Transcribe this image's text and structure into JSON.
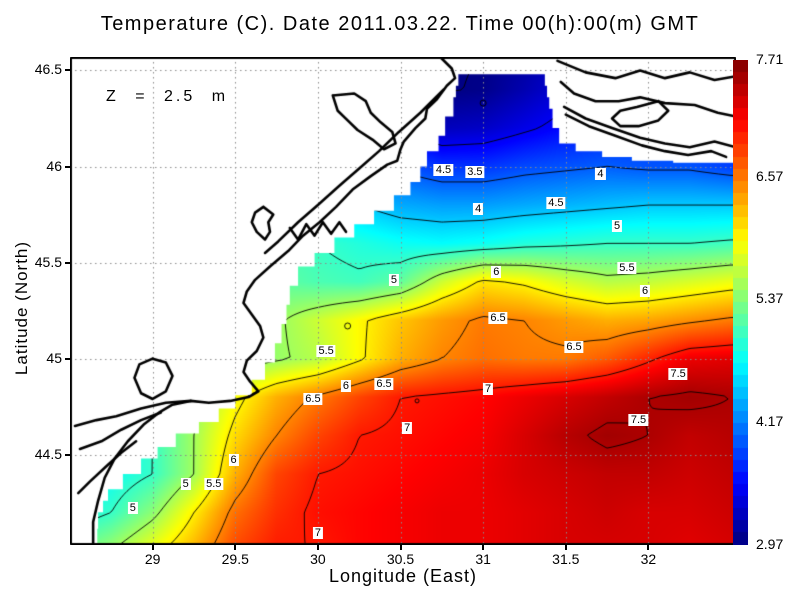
{
  "chart_data": {
    "type": "heatmap",
    "title": "Temperature (C). Date 2011.03.22. Time 00(h):00(m) GMT",
    "xlabel": "Longitude (East)",
    "ylabel": "Latitude (North)",
    "annotation": "Z = 2.5 m",
    "xlim": [
      28.5,
      32.53
    ],
    "ylim": [
      44.03,
      46.57
    ],
    "zlim": [
      2.97,
      7.71
    ],
    "grid_on": true,
    "legend_position": "right-colorbar",
    "x_ticks": {
      "values": [
        29,
        29.5,
        30,
        30.5,
        31,
        31.5,
        32
      ],
      "labels": [
        "29",
        "29.5",
        "30",
        "30.5",
        "31",
        "31.5",
        "32"
      ]
    },
    "y_ticks": {
      "values": [
        46.5,
        46,
        45.5,
        45,
        44.5
      ],
      "labels": [
        "46.5",
        "46",
        "45.5",
        "45",
        "44.5"
      ]
    },
    "colorbar": {
      "tick_values": [
        7.71,
        6.57,
        5.37,
        4.17,
        2.97
      ],
      "tick_labels": [
        "7.71",
        "6.57",
        "5.37",
        "4.17",
        "2.97"
      ],
      "colormap": "jet"
    },
    "colors": {
      "land": "#ffffff",
      "coastline": "#000000",
      "gridline": "#8a8a8a",
      "contour": "#000000",
      "frame": "#000000"
    },
    "grid": {
      "lon": [
        28.5,
        28.75,
        29.0,
        29.25,
        29.5,
        29.75,
        30.0,
        30.25,
        30.5,
        30.75,
        31.0,
        31.25,
        31.5,
        31.75,
        32.0,
        32.25,
        32.5
      ],
      "lat": [
        46.6,
        46.4,
        46.2,
        46.0,
        45.8,
        45.6,
        45.4,
        45.2,
        45.0,
        44.8,
        44.6,
        44.4,
        44.2,
        44.0
      ],
      "values": [
        [
          4.6,
          4.6,
          4.6,
          4.6,
          4.5,
          4.4,
          4.2,
          3.8,
          3.3,
          2.98,
          3.0,
          3.1,
          3.3,
          3.5,
          3.7,
          3.8,
          3.9
        ],
        [
          4.7,
          4.7,
          4.7,
          4.6,
          4.5,
          4.4,
          4.2,
          3.7,
          3.2,
          2.98,
          3.02,
          3.2,
          3.4,
          3.6,
          3.7,
          3.85,
          3.9
        ],
        [
          4.8,
          4.8,
          4.8,
          4.7,
          4.6,
          4.5,
          4.3,
          3.9,
          3.5,
          3.25,
          3.3,
          3.45,
          3.6,
          3.7,
          3.8,
          3.85,
          3.9
        ],
        [
          5.0,
          5.0,
          4.9,
          4.9,
          4.8,
          4.7,
          4.5,
          4.2,
          3.95,
          3.8,
          3.8,
          3.9,
          3.95,
          4.0,
          3.95,
          3.95,
          3.85
        ],
        [
          5.2,
          5.1,
          5.1,
          5.0,
          5.0,
          4.9,
          4.7,
          4.5,
          4.35,
          4.3,
          4.3,
          4.35,
          4.4,
          4.45,
          4.5,
          4.5,
          4.5
        ],
        [
          5.4,
          5.35,
          5.3,
          5.25,
          5.2,
          5.1,
          5.0,
          4.9,
          4.8,
          4.75,
          4.8,
          4.9,
          4.95,
          5.0,
          5.0,
          5.0,
          5.05
        ],
        [
          5.6,
          5.55,
          5.5,
          5.45,
          5.35,
          5.2,
          5.1,
          5.05,
          5.2,
          5.7,
          6.05,
          5.95,
          5.75,
          5.6,
          5.65,
          5.75,
          5.85
        ],
        [
          6.0,
          5.9,
          5.7,
          5.5,
          5.3,
          5.45,
          5.7,
          5.95,
          6.2,
          6.4,
          6.55,
          6.5,
          6.4,
          6.3,
          6.35,
          6.45,
          6.55
        ],
        [
          5.6,
          5.3,
          5.1,
          5.15,
          5.3,
          5.45,
          5.6,
          5.95,
          6.3,
          6.5,
          6.6,
          6.55,
          6.55,
          6.7,
          6.95,
          7.2,
          7.25
        ],
        [
          4.7,
          4.8,
          5.0,
          5.4,
          5.9,
          6.3,
          6.55,
          6.8,
          7.0,
          7.05,
          7.1,
          7.2,
          7.3,
          7.4,
          7.5,
          7.55,
          7.5
        ],
        [
          4.6,
          4.7,
          5.0,
          5.5,
          6.1,
          6.5,
          6.8,
          7.0,
          7.05,
          7.1,
          7.15,
          7.3,
          7.45,
          7.55,
          7.5,
          7.4,
          7.45
        ],
        [
          4.6,
          4.8,
          5.0,
          5.5,
          6.3,
          6.8,
          7.0,
          7.05,
          7.1,
          7.15,
          7.2,
          7.3,
          7.35,
          7.4,
          7.4,
          7.35,
          7.4
        ],
        [
          4.8,
          5.0,
          5.4,
          6.0,
          6.6,
          6.9,
          7.05,
          7.1,
          7.15,
          7.2,
          7.2,
          7.25,
          7.3,
          7.35,
          7.3,
          7.3,
          7.35
        ],
        [
          5.2,
          5.5,
          5.9,
          6.3,
          6.8,
          7.0,
          7.0,
          7.1,
          7.15,
          7.2,
          7.2,
          7.25,
          7.3,
          7.3,
          7.3,
          7.25,
          7.3
        ]
      ]
    },
    "contour_levels": [
      3,
      3.5,
      4,
      4.5,
      5,
      5.5,
      6,
      6.5,
      7,
      7.5
    ],
    "contour_labels": [
      {
        "text": "4.5",
        "lon": 30.76,
        "lat": 45.98
      },
      {
        "text": "3.5",
        "lon": 30.95,
        "lat": 45.97
      },
      {
        "text": "4",
        "lon": 31.71,
        "lat": 45.96
      },
      {
        "text": "4",
        "lon": 30.97,
        "lat": 45.78
      },
      {
        "text": "4.5",
        "lon": 31.44,
        "lat": 45.81
      },
      {
        "text": "5",
        "lon": 31.81,
        "lat": 45.69
      },
      {
        "text": "5",
        "lon": 30.46,
        "lat": 45.41
      },
      {
        "text": "6",
        "lon": 31.08,
        "lat": 45.45
      },
      {
        "text": "5.5",
        "lon": 31.87,
        "lat": 45.47
      },
      {
        "text": "6",
        "lon": 31.98,
        "lat": 45.35
      },
      {
        "text": "6.5",
        "lon": 31.09,
        "lat": 45.21
      },
      {
        "text": "6.5",
        "lon": 31.55,
        "lat": 45.06
      },
      {
        "text": "5.5",
        "lon": 30.05,
        "lat": 45.04
      },
      {
        "text": "6",
        "lon": 30.17,
        "lat": 44.86
      },
      {
        "text": "6.5",
        "lon": 30.4,
        "lat": 44.87
      },
      {
        "text": "6.5",
        "lon": 29.97,
        "lat": 44.79
      },
      {
        "text": "7",
        "lon": 31.03,
        "lat": 44.84
      },
      {
        "text": "7.5",
        "lon": 32.18,
        "lat": 44.92
      },
      {
        "text": "7",
        "lon": 30.54,
        "lat": 44.64
      },
      {
        "text": "7.5",
        "lon": 31.94,
        "lat": 44.68
      },
      {
        "text": "6",
        "lon": 29.49,
        "lat": 44.47
      },
      {
        "text": "5",
        "lon": 29.2,
        "lat": 44.35
      },
      {
        "text": "5.5",
        "lon": 29.37,
        "lat": 44.35
      },
      {
        "text": "5",
        "lon": 28.88,
        "lat": 44.22
      },
      {
        "text": "7",
        "lon": 30.0,
        "lat": 44.09
      }
    ],
    "contour_rings": [
      [
        30.18,
        45.17,
        3
      ],
      [
        30.6,
        44.78,
        2
      ],
      [
        31.0,
        46.33,
        3
      ]
    ],
    "data_boundary": [
      [
        28.66,
        44.03
      ],
      [
        28.67,
        44.2
      ],
      [
        28.73,
        44.32
      ],
      [
        28.82,
        44.4
      ],
      [
        28.93,
        44.48
      ],
      [
        29.03,
        44.54
      ],
      [
        29.14,
        44.61
      ],
      [
        29.28,
        44.67
      ],
      [
        29.4,
        44.74
      ],
      [
        29.5,
        44.81
      ],
      [
        29.6,
        44.89
      ],
      [
        29.68,
        44.98
      ],
      [
        29.74,
        45.08
      ],
      [
        29.78,
        45.18
      ],
      [
        29.81,
        45.28
      ],
      [
        29.83,
        45.38
      ],
      [
        29.88,
        45.48
      ],
      [
        29.98,
        45.55
      ],
      [
        30.1,
        45.63
      ],
      [
        30.22,
        45.7
      ],
      [
        30.34,
        45.77
      ],
      [
        30.46,
        45.85
      ],
      [
        30.56,
        45.92
      ],
      [
        30.62,
        46.0
      ],
      [
        30.66,
        46.08
      ],
      [
        30.73,
        46.16
      ],
      [
        30.77,
        46.26
      ],
      [
        30.82,
        46.36
      ],
      [
        30.85,
        46.48
      ],
      [
        31.36,
        46.48
      ],
      [
        31.4,
        46.3
      ],
      [
        31.42,
        46.2
      ],
      [
        31.46,
        46.12
      ],
      [
        31.56,
        46.08
      ],
      [
        31.72,
        46.05
      ],
      [
        31.9,
        46.03
      ],
      [
        32.15,
        46.02
      ],
      [
        32.56,
        46.01
      ],
      [
        32.56,
        44.0
      ],
      [
        28.66,
        44.0
      ]
    ],
    "coastlines": [
      [
        [
          30.74,
          46.57
        ],
        [
          30.81,
          46.51
        ],
        [
          30.83,
          46.46
        ],
        [
          30.78,
          46.42
        ],
        [
          30.72,
          46.35
        ],
        [
          30.66,
          46.3
        ],
        [
          30.65,
          46.25
        ],
        [
          30.59,
          46.2
        ],
        [
          30.52,
          46.13
        ],
        [
          30.5,
          46.09
        ],
        [
          30.48,
          46.03
        ],
        [
          30.42,
          46.01
        ],
        [
          30.32,
          45.95
        ],
        [
          30.21,
          45.88
        ],
        [
          30.11,
          45.79
        ],
        [
          30.01,
          45.71
        ],
        [
          29.91,
          45.64
        ],
        [
          29.82,
          45.56
        ],
        [
          29.71,
          45.48
        ],
        [
          29.62,
          45.41
        ],
        [
          29.57,
          45.35
        ],
        [
          29.55,
          45.29
        ],
        [
          29.6,
          45.23
        ],
        [
          29.65,
          45.17
        ],
        [
          29.67,
          45.11
        ],
        [
          29.63,
          45.04
        ],
        [
          29.57,
          44.99
        ],
        [
          29.55,
          44.93
        ],
        [
          29.59,
          44.88
        ],
        [
          29.64,
          44.83
        ],
        [
          29.58,
          44.8
        ],
        [
          29.47,
          44.78
        ],
        [
          29.34,
          44.77
        ],
        [
          29.23,
          44.78
        ],
        [
          29.12,
          44.76
        ],
        [
          29.04,
          44.72
        ],
        [
          28.95,
          44.66
        ],
        [
          28.85,
          44.57
        ],
        [
          28.77,
          44.48
        ],
        [
          28.71,
          44.38
        ],
        [
          28.67,
          44.26
        ],
        [
          28.64,
          44.15
        ],
        [
          28.64,
          44.03
        ]
      ],
      [
        [
          30.76,
          46.4
        ],
        [
          30.62,
          46.28
        ],
        [
          30.49,
          46.18
        ],
        [
          30.37,
          46.08
        ],
        [
          30.25,
          45.99
        ],
        [
          30.13,
          45.9
        ],
        [
          30.0,
          45.8
        ],
        [
          29.88,
          45.71
        ],
        [
          29.76,
          45.61
        ],
        [
          29.68,
          45.55
        ]
      ],
      [
        [
          30.17,
          45.66
        ],
        [
          30.13,
          45.71
        ],
        [
          30.08,
          45.65
        ],
        [
          30.03,
          45.71
        ],
        [
          29.98,
          45.64
        ],
        [
          29.93,
          45.7
        ],
        [
          29.88,
          45.62
        ],
        [
          29.83,
          45.68
        ]
      ],
      [
        [
          30.09,
          46.37
        ],
        [
          30.22,
          46.38
        ],
        [
          30.29,
          46.34
        ],
        [
          30.32,
          46.28
        ],
        [
          30.38,
          46.23
        ],
        [
          30.45,
          46.18
        ],
        [
          30.47,
          46.12
        ],
        [
          30.4,
          46.09
        ],
        [
          30.33,
          46.14
        ],
        [
          30.24,
          46.19
        ],
        [
          30.18,
          46.24
        ],
        [
          30.12,
          46.29
        ],
        [
          30.09,
          46.37
        ]
      ],
      [
        [
          29.67,
          45.79
        ],
        [
          29.62,
          45.76
        ],
        [
          29.6,
          45.71
        ],
        [
          29.63,
          45.66
        ],
        [
          29.68,
          45.62
        ],
        [
          29.71,
          45.66
        ],
        [
          29.7,
          45.71
        ],
        [
          29.73,
          45.75
        ],
        [
          29.67,
          45.79
        ]
      ],
      [
        [
          31.45,
          46.55
        ],
        [
          31.62,
          46.49
        ],
        [
          31.8,
          46.46
        ],
        [
          31.95,
          46.5
        ],
        [
          32.1,
          46.46
        ],
        [
          32.25,
          46.49
        ],
        [
          32.4,
          46.45
        ],
        [
          32.53,
          46.47
        ]
      ],
      [
        [
          31.47,
          46.44
        ],
        [
          31.55,
          46.38
        ],
        [
          31.68,
          46.34
        ],
        [
          31.82,
          46.34
        ],
        [
          31.95,
          46.36
        ],
        [
          32.1,
          46.33
        ],
        [
          32.28,
          46.32
        ],
        [
          32.42,
          46.28
        ],
        [
          32.53,
          46.26
        ]
      ],
      [
        [
          32.06,
          46.34
        ],
        [
          32.12,
          46.29
        ],
        [
          32.06,
          46.24
        ],
        [
          31.94,
          46.21
        ],
        [
          31.83,
          46.21
        ],
        [
          31.78,
          46.25
        ],
        [
          31.83,
          46.29
        ],
        [
          31.93,
          46.31
        ],
        [
          32.06,
          46.34
        ]
      ],
      [
        [
          31.49,
          46.31
        ],
        [
          31.62,
          46.25
        ],
        [
          31.78,
          46.2
        ],
        [
          31.95,
          46.15
        ],
        [
          32.1,
          46.12
        ],
        [
          32.25,
          46.1
        ],
        [
          32.4,
          46.13
        ],
        [
          32.53,
          46.1
        ]
      ],
      [
        [
          31.5,
          46.27
        ],
        [
          31.64,
          46.21
        ],
        [
          31.8,
          46.16
        ],
        [
          31.96,
          46.11
        ],
        [
          32.1,
          46.08
        ],
        [
          32.24,
          46.06
        ],
        [
          32.38,
          46.08
        ],
        [
          32.47,
          46.05
        ]
      ],
      [
        [
          29.23,
          44.78
        ],
        [
          29.08,
          44.77
        ],
        [
          28.93,
          44.74
        ],
        [
          28.78,
          44.7
        ],
        [
          28.66,
          44.68
        ],
        [
          28.53,
          44.65
        ]
      ],
      [
        [
          29.05,
          44.72
        ],
        [
          28.93,
          44.68
        ],
        [
          28.81,
          44.63
        ],
        [
          28.69,
          44.57
        ],
        [
          28.56,
          44.53
        ]
      ],
      [
        [
          28.9,
          44.57
        ],
        [
          28.81,
          44.51
        ],
        [
          28.72,
          44.44
        ],
        [
          28.62,
          44.36
        ],
        [
          28.55,
          44.3
        ]
      ],
      [
        [
          29.0,
          45.0
        ],
        [
          29.08,
          44.98
        ],
        [
          29.12,
          44.91
        ],
        [
          29.08,
          44.83
        ],
        [
          29.0,
          44.79
        ],
        [
          28.93,
          44.82
        ],
        [
          28.89,
          44.9
        ],
        [
          28.92,
          44.97
        ],
        [
          29.0,
          45.0
        ]
      ]
    ]
  }
}
